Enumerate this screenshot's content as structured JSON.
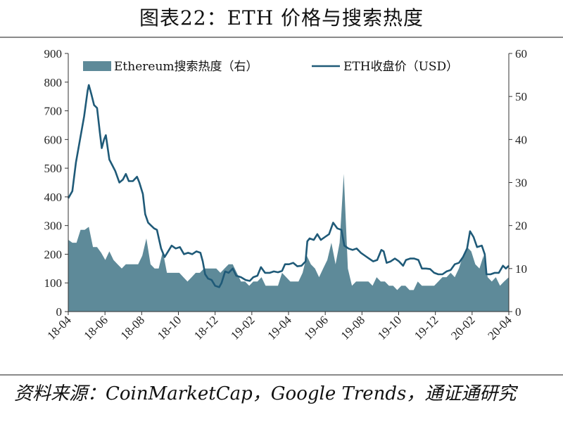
{
  "title": "图表22：ETH 价格与搜索热度",
  "source": "资料来源：CoinMarketCap，Google Trends，通证通研究",
  "chart_data": {
    "type": "area+line",
    "legend_position": "top",
    "grid": false,
    "x_ticks": [
      "18-04",
      "18-06",
      "18-08",
      "18-10",
      "18-12",
      "19-02",
      "19-04",
      "19-06",
      "19-08",
      "19-10",
      "19-12",
      "20-02",
      "20-04"
    ],
    "x_range": [
      "2018-04-01",
      "2020-04-20"
    ],
    "left_axis": {
      "range": [
        0,
        900
      ],
      "ticks": [
        0,
        100,
        200,
        300,
        400,
        500,
        600,
        700,
        800,
        900
      ]
    },
    "right_axis": {
      "range": [
        0,
        60
      ],
      "ticks": [
        0,
        10,
        20,
        30,
        40,
        50,
        60
      ]
    },
    "series": [
      {
        "name": "Ethereum搜索热度（右）",
        "kind": "area",
        "axis": "right",
        "color": "#5e8a99",
        "points": [
          [
            "2018-04-01",
            16.7
          ],
          [
            "2018-04-08",
            16.0
          ],
          [
            "2018-04-15",
            16.0
          ],
          [
            "2018-04-22",
            19.0
          ],
          [
            "2018-04-29",
            19.0
          ],
          [
            "2018-05-06",
            19.7
          ],
          [
            "2018-05-13",
            15.0
          ],
          [
            "2018-05-20",
            15.0
          ],
          [
            "2018-05-27",
            13.7
          ],
          [
            "2018-06-03",
            12.0
          ],
          [
            "2018-06-10",
            14.0
          ],
          [
            "2018-06-17",
            12.0
          ],
          [
            "2018-06-24",
            11.0
          ],
          [
            "2018-07-01",
            10.0
          ],
          [
            "2018-07-08",
            11.0
          ],
          [
            "2018-07-15",
            11.0
          ],
          [
            "2018-07-22",
            11.0
          ],
          [
            "2018-07-29",
            11.0
          ],
          [
            "2018-08-05",
            13.0
          ],
          [
            "2018-08-12",
            17.0
          ],
          [
            "2018-08-19",
            11.0
          ],
          [
            "2018-08-26",
            10.0
          ],
          [
            "2018-09-02",
            10.0
          ],
          [
            "2018-09-09",
            14.0
          ],
          [
            "2018-09-16",
            9.0
          ],
          [
            "2018-09-23",
            9.0
          ],
          [
            "2018-09-30",
            9.0
          ],
          [
            "2018-10-07",
            9.0
          ],
          [
            "2018-10-14",
            8.0
          ],
          [
            "2018-10-21",
            7.0
          ],
          [
            "2018-10-28",
            8.0
          ],
          [
            "2018-11-04",
            9.0
          ],
          [
            "2018-11-11",
            9.0
          ],
          [
            "2018-11-18",
            10.0
          ],
          [
            "2018-11-25",
            10.0
          ],
          [
            "2018-12-02",
            10.0
          ],
          [
            "2018-12-09",
            10.0
          ],
          [
            "2018-12-16",
            9.0
          ],
          [
            "2018-12-23",
            10.0
          ],
          [
            "2018-12-30",
            11.0
          ],
          [
            "2019-01-06",
            11.0
          ],
          [
            "2019-01-13",
            9.0
          ],
          [
            "2019-01-20",
            7.0
          ],
          [
            "2019-01-27",
            7.0
          ],
          [
            "2019-02-03",
            6.0
          ],
          [
            "2019-02-10",
            7.0
          ],
          [
            "2019-02-17",
            7.0
          ],
          [
            "2019-02-24",
            8.0
          ],
          [
            "2019-03-03",
            6.0
          ],
          [
            "2019-03-10",
            6.0
          ],
          [
            "2019-03-17",
            6.0
          ],
          [
            "2019-03-24",
            6.0
          ],
          [
            "2019-03-31",
            9.0
          ],
          [
            "2019-04-07",
            8.0
          ],
          [
            "2019-04-14",
            7.0
          ],
          [
            "2019-04-21",
            7.0
          ],
          [
            "2019-04-28",
            7.0
          ],
          [
            "2019-05-05",
            9.0
          ],
          [
            "2019-05-12",
            13.0
          ],
          [
            "2019-05-19",
            11.0
          ],
          [
            "2019-05-26",
            10.0
          ],
          [
            "2019-06-02",
            8.0
          ],
          [
            "2019-06-09",
            10.0
          ],
          [
            "2019-06-16",
            12.0
          ],
          [
            "2019-06-23",
            16.0
          ],
          [
            "2019-06-30",
            11.0
          ],
          [
            "2019-07-07",
            16.0
          ],
          [
            "2019-07-14",
            32.0
          ],
          [
            "2019-07-21",
            10.0
          ],
          [
            "2019-07-28",
            6.0
          ],
          [
            "2019-08-04",
            7.0
          ],
          [
            "2019-08-11",
            7.0
          ],
          [
            "2019-08-18",
            7.0
          ],
          [
            "2019-08-25",
            7.0
          ],
          [
            "2019-09-01",
            6.0
          ],
          [
            "2019-09-08",
            8.0
          ],
          [
            "2019-09-15",
            7.0
          ],
          [
            "2019-09-22",
            7.0
          ],
          [
            "2019-09-29",
            6.0
          ],
          [
            "2019-10-06",
            6.0
          ],
          [
            "2019-10-13",
            5.0
          ],
          [
            "2019-10-20",
            6.0
          ],
          [
            "2019-10-27",
            6.0
          ],
          [
            "2019-11-03",
            5.0
          ],
          [
            "2019-11-10",
            5.0
          ],
          [
            "2019-11-17",
            7.0
          ],
          [
            "2019-11-24",
            6.0
          ],
          [
            "2019-12-01",
            6.0
          ],
          [
            "2019-12-08",
            6.0
          ],
          [
            "2019-12-15",
            6.0
          ],
          [
            "2019-12-22",
            7.0
          ],
          [
            "2019-12-29",
            8.0
          ],
          [
            "2020-01-05",
            8.0
          ],
          [
            "2020-01-12",
            9.0
          ],
          [
            "2020-01-19",
            8.0
          ],
          [
            "2020-01-26",
            10.0
          ],
          [
            "2020-02-02",
            13.0
          ],
          [
            "2020-02-09",
            15.0
          ],
          [
            "2020-02-16",
            14.0
          ],
          [
            "2020-02-23",
            11.0
          ],
          [
            "2020-03-01",
            10.0
          ],
          [
            "2020-03-08",
            13.0
          ],
          [
            "2020-03-15",
            8.0
          ],
          [
            "2020-03-22",
            7.0
          ],
          [
            "2020-03-29",
            8.0
          ],
          [
            "2020-04-05",
            6.0
          ],
          [
            "2020-04-12",
            7.0
          ],
          [
            "2020-04-20",
            8.0
          ]
        ]
      },
      {
        "name": "ETH收盘价（USD）",
        "kind": "line",
        "axis": "left",
        "color": "#1f5a78",
        "points": [
          [
            "2018-04-01",
            395
          ],
          [
            "2018-04-08",
            420
          ],
          [
            "2018-04-14",
            520
          ],
          [
            "2018-04-21",
            600
          ],
          [
            "2018-04-28",
            680
          ],
          [
            "2018-05-04",
            770
          ],
          [
            "2018-05-06",
            790
          ],
          [
            "2018-05-10",
            760
          ],
          [
            "2018-05-15",
            720
          ],
          [
            "2018-05-20",
            710
          ],
          [
            "2018-05-25",
            620
          ],
          [
            "2018-05-28",
            570
          ],
          [
            "2018-06-01",
            600
          ],
          [
            "2018-06-04",
            615
          ],
          [
            "2018-06-10",
            530
          ],
          [
            "2018-06-15",
            510
          ],
          [
            "2018-06-20",
            490
          ],
          [
            "2018-06-27",
            450
          ],
          [
            "2018-07-03",
            460
          ],
          [
            "2018-07-08",
            480
          ],
          [
            "2018-07-13",
            455
          ],
          [
            "2018-07-20",
            455
          ],
          [
            "2018-07-27",
            470
          ],
          [
            "2018-07-31",
            450
          ],
          [
            "2018-08-06",
            410
          ],
          [
            "2018-08-10",
            340
          ],
          [
            "2018-08-15",
            310
          ],
          [
            "2018-08-20",
            300
          ],
          [
            "2018-08-25",
            290
          ],
          [
            "2018-08-30",
            285
          ],
          [
            "2018-09-06",
            220
          ],
          [
            "2018-09-12",
            190
          ],
          [
            "2018-09-18",
            210
          ],
          [
            "2018-09-24",
            230
          ],
          [
            "2018-10-01",
            220
          ],
          [
            "2018-10-08",
            225
          ],
          [
            "2018-10-15",
            200
          ],
          [
            "2018-10-22",
            205
          ],
          [
            "2018-10-29",
            200
          ],
          [
            "2018-11-05",
            210
          ],
          [
            "2018-11-12",
            205
          ],
          [
            "2018-11-16",
            175
          ],
          [
            "2018-11-20",
            130
          ],
          [
            "2018-11-25",
            115
          ],
          [
            "2018-12-01",
            110
          ],
          [
            "2018-12-07",
            90
          ],
          [
            "2018-12-14",
            85
          ],
          [
            "2018-12-18",
            100
          ],
          [
            "2018-12-24",
            140
          ],
          [
            "2018-12-30",
            135
          ],
          [
            "2019-01-06",
            150
          ],
          [
            "2019-01-12",
            125
          ],
          [
            "2019-01-20",
            120
          ],
          [
            "2019-01-28",
            110
          ],
          [
            "2019-02-04",
            107
          ],
          [
            "2019-02-10",
            120
          ],
          [
            "2019-02-17",
            125
          ],
          [
            "2019-02-23",
            155
          ],
          [
            "2019-03-02",
            135
          ],
          [
            "2019-03-10",
            135
          ],
          [
            "2019-03-17",
            140
          ],
          [
            "2019-03-24",
            137
          ],
          [
            "2019-03-31",
            142
          ],
          [
            "2019-04-05",
            165
          ],
          [
            "2019-04-12",
            165
          ],
          [
            "2019-04-19",
            170
          ],
          [
            "2019-04-26",
            158
          ],
          [
            "2019-05-03",
            160
          ],
          [
            "2019-05-10",
            175
          ],
          [
            "2019-05-13",
            245
          ],
          [
            "2019-05-17",
            255
          ],
          [
            "2019-05-24",
            250
          ],
          [
            "2019-05-30",
            270
          ],
          [
            "2019-06-05",
            250
          ],
          [
            "2019-06-12",
            260
          ],
          [
            "2019-06-19",
            270
          ],
          [
            "2019-06-26",
            310
          ],
          [
            "2019-07-03",
            290
          ],
          [
            "2019-07-10",
            285
          ],
          [
            "2019-07-15",
            230
          ],
          [
            "2019-07-22",
            220
          ],
          [
            "2019-07-29",
            215
          ],
          [
            "2019-08-05",
            220
          ],
          [
            "2019-08-12",
            205
          ],
          [
            "2019-08-19",
            195
          ],
          [
            "2019-08-26",
            185
          ],
          [
            "2019-09-02",
            175
          ],
          [
            "2019-09-09",
            180
          ],
          [
            "2019-09-16",
            215
          ],
          [
            "2019-09-20",
            210
          ],
          [
            "2019-09-25",
            170
          ],
          [
            "2019-10-02",
            175
          ],
          [
            "2019-10-09",
            185
          ],
          [
            "2019-10-16",
            175
          ],
          [
            "2019-10-23",
            160
          ],
          [
            "2019-10-28",
            180
          ],
          [
            "2019-11-04",
            185
          ],
          [
            "2019-11-11",
            185
          ],
          [
            "2019-11-18",
            180
          ],
          [
            "2019-11-24",
            150
          ],
          [
            "2019-12-01",
            150
          ],
          [
            "2019-12-08",
            148
          ],
          [
            "2019-12-15",
            135
          ],
          [
            "2019-12-22",
            130
          ],
          [
            "2019-12-29",
            130
          ],
          [
            "2020-01-05",
            140
          ],
          [
            "2020-01-12",
            145
          ],
          [
            "2020-01-19",
            165
          ],
          [
            "2020-01-26",
            170
          ],
          [
            "2020-02-02",
            190
          ],
          [
            "2020-02-09",
            220
          ],
          [
            "2020-02-14",
            280
          ],
          [
            "2020-02-20",
            260
          ],
          [
            "2020-02-26",
            225
          ],
          [
            "2020-03-05",
            230
          ],
          [
            "2020-03-10",
            200
          ],
          [
            "2020-03-13",
            130
          ],
          [
            "2020-03-20",
            130
          ],
          [
            "2020-03-27",
            135
          ],
          [
            "2020-04-03",
            135
          ],
          [
            "2020-04-10",
            160
          ],
          [
            "2020-04-15",
            150
          ],
          [
            "2020-04-20",
            160
          ]
        ]
      }
    ]
  }
}
